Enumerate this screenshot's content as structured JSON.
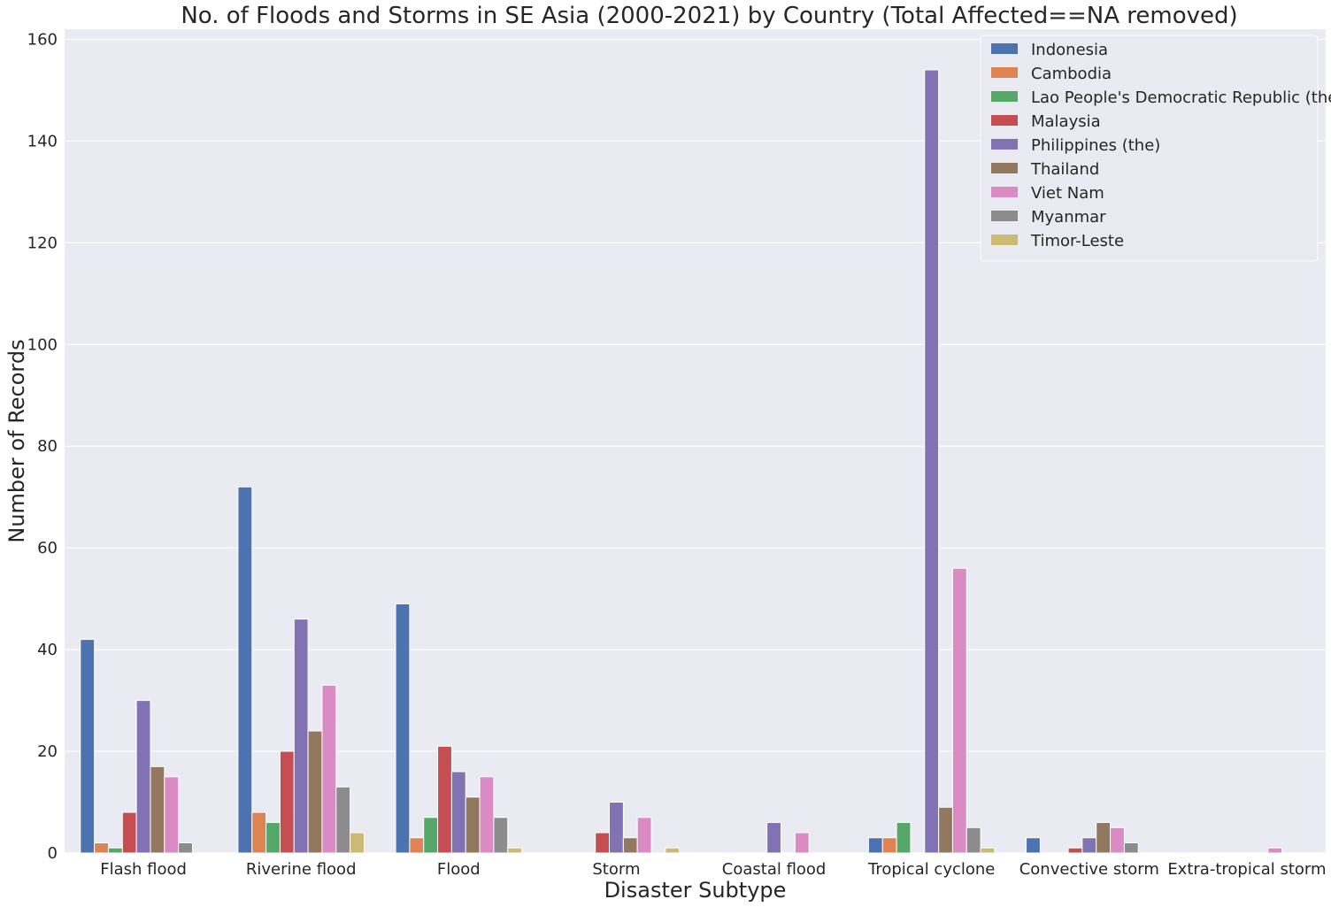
{
  "chart_data": {
    "type": "bar",
    "title": "No. of Floods and Storms in SE Asia (2000-2021) by Country (Total Affected==NA removed)",
    "xlabel": "Disaster Subtype",
    "ylabel": "Number of Records",
    "ylim": [
      0,
      162
    ],
    "yticks": [
      0,
      20,
      40,
      60,
      80,
      100,
      120,
      140,
      160
    ],
    "grid": true,
    "legend_position": "top-right",
    "categories": [
      "Flash flood",
      "Riverine flood",
      "Flood",
      "Storm",
      "Coastal flood",
      "Tropical cyclone",
      "Convective storm",
      "Extra-tropical storm"
    ],
    "series": [
      {
        "name": "Indonesia",
        "color": "#4c72b0",
        "values": [
          42,
          72,
          49,
          0,
          0,
          3,
          3,
          0
        ]
      },
      {
        "name": "Cambodia",
        "color": "#dd8452",
        "values": [
          2,
          8,
          3,
          0,
          0,
          3,
          0,
          0
        ]
      },
      {
        "name": "Lao People's Democratic Republic (the)",
        "color": "#55a868",
        "values": [
          1,
          6,
          7,
          0,
          0,
          6,
          0,
          0
        ]
      },
      {
        "name": "Malaysia",
        "color": "#c44e52",
        "values": [
          8,
          20,
          21,
          4,
          0,
          0,
          1,
          0
        ]
      },
      {
        "name": "Philippines (the)",
        "color": "#8172b3",
        "values": [
          30,
          46,
          16,
          10,
          6,
          154,
          3,
          0
        ]
      },
      {
        "name": "Thailand",
        "color": "#937860",
        "values": [
          17,
          24,
          11,
          3,
          0,
          9,
          6,
          0
        ]
      },
      {
        "name": "Viet Nam",
        "color": "#da8bc3",
        "values": [
          15,
          33,
          15,
          7,
          4,
          56,
          5,
          1
        ]
      },
      {
        "name": "Myanmar",
        "color": "#8c8c8c",
        "values": [
          2,
          13,
          7,
          0,
          0,
          5,
          2,
          0
        ]
      },
      {
        "name": "Timor-Leste",
        "color": "#ccb974",
        "values": [
          0,
          4,
          1,
          1,
          0,
          1,
          0,
          0
        ]
      }
    ],
    "colors": {
      "plot_background": "#eaeaf2",
      "grid": "#ffffff"
    }
  }
}
